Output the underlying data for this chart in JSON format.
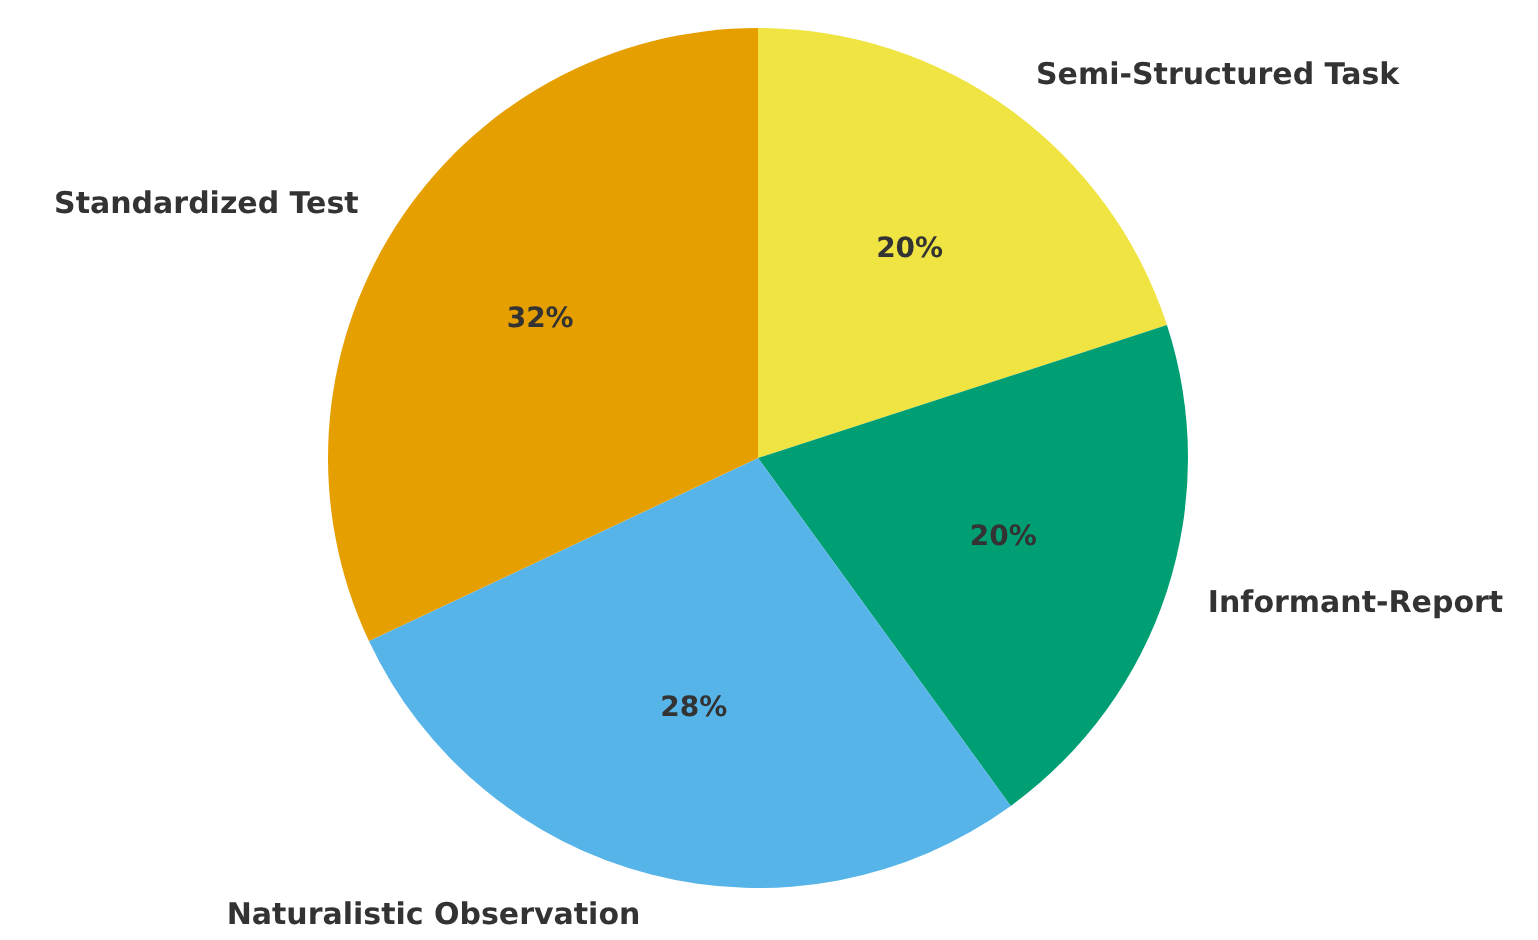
{
  "chart_data": {
    "type": "pie",
    "categories": [
      "Semi-Structured Task",
      "Informant-Report",
      "Naturalistic Observation",
      "Standardized Test"
    ],
    "values": [
      20,
      20,
      28,
      32
    ],
    "colors": [
      "#f0e442",
      "#009e73",
      "#56b4e9",
      "#e69f00"
    ],
    "value_labels": [
      "20%",
      "20%",
      "28%",
      "32%"
    ]
  }
}
